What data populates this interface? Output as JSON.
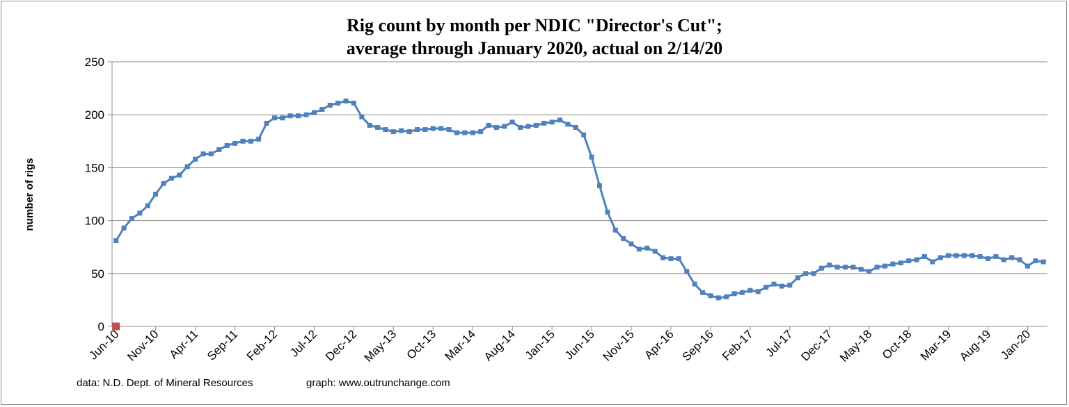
{
  "chart_data": {
    "type": "line",
    "title": "Rig count by month per NDIC \"Director's Cut\";",
    "subtitle": "average through January 2020, actual on 2/14/20",
    "xlabel": "",
    "ylabel": "number of rigs",
    "ylim": [
      0,
      250
    ],
    "yticks": [
      0,
      50,
      100,
      150,
      200,
      250
    ],
    "xtick_labels": [
      "Jun-10",
      "Nov-10",
      "Apr-11",
      "Sep-11",
      "Feb-12",
      "Jul-12",
      "Dec-12",
      "May-13",
      "Oct-13",
      "Mar-14",
      "Aug-14",
      "Jan-15",
      "Jun-15",
      "Nov-15",
      "Apr-16",
      "Sep-16",
      "Feb-17",
      "Jul-17",
      "Dec-17",
      "May-18",
      "Oct-18",
      "Mar-19",
      "Aug-19",
      "Jan-20"
    ],
    "x_start": "Jun-10",
    "x_end": "Feb-20",
    "grid": true,
    "legend": "none",
    "series": [
      {
        "values": [
          81,
          93,
          102,
          107,
          114,
          125,
          135,
          140,
          143,
          151,
          158,
          163,
          163,
          167,
          171,
          173,
          175,
          175,
          177,
          192,
          197,
          197,
          199,
          199,
          200,
          202,
          205,
          209,
          211,
          213,
          211,
          198,
          190,
          188,
          186,
          184,
          185,
          184,
          186,
          186,
          187,
          187,
          186,
          183,
          183,
          183,
          184,
          190,
          188,
          189,
          193,
          188,
          189,
          190,
          192,
          193,
          195,
          191,
          188,
          181,
          160,
          133,
          108,
          91,
          83,
          78,
          73,
          74,
          71,
          65,
          64,
          64,
          52,
          40,
          32,
          29,
          27,
          28,
          31,
          32,
          34,
          33,
          37,
          40,
          38,
          39,
          46,
          50,
          50,
          55,
          58,
          56,
          56,
          56,
          54,
          52,
          56,
          57,
          59,
          60,
          62,
          63,
          66,
          61,
          65,
          67,
          67,
          67,
          67,
          66,
          64,
          66,
          63,
          65,
          63,
          57,
          62,
          61
        ],
        "color": "#4F81BD"
      },
      {
        "x": "Jun-10",
        "values": [
          0
        ],
        "color": "#C0504D"
      }
    ]
  },
  "footer": {
    "source": "data: N.D. Dept. of Mineral Resources",
    "credit": "graph:  www.outrunchange.com"
  }
}
